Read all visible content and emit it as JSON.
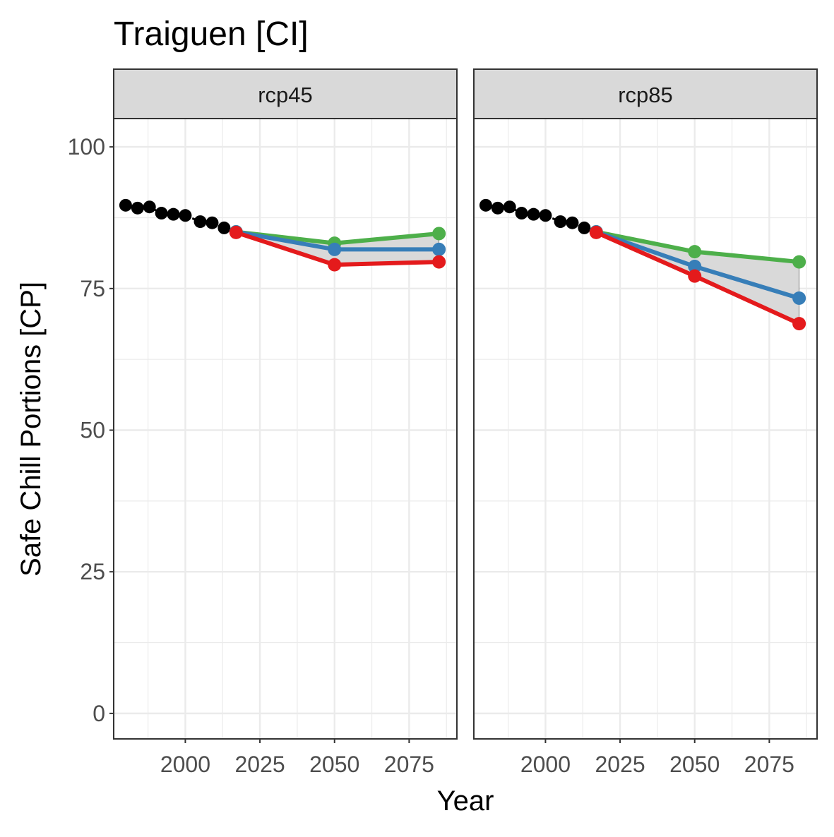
{
  "chart_data": {
    "type": "line",
    "title": "Traiguen [CI]",
    "xlabel": "Year",
    "ylabel": "Safe Chill Portions [CP]",
    "xlim": [
      1976,
      2091
    ],
    "ylim": [
      -4.5,
      105
    ],
    "x_ticks": [
      2000,
      2025,
      2050,
      2075
    ],
    "x_tick_labels": [
      "2000",
      "2025",
      "2050",
      "2075"
    ],
    "y_ticks": [
      0,
      25,
      50,
      75,
      100
    ],
    "y_tick_labels": [
      "0",
      "25",
      "50",
      "75",
      "100"
    ],
    "grid": true,
    "colors": {
      "historic": "#000000",
      "green": "#4daf4a",
      "blue": "#377eb8",
      "red": "#e41a1c",
      "ribbon": "#d9d9d9",
      "strip": "#d9d9d9",
      "gridline": "#ebebeb",
      "border": "#333333"
    },
    "panels": [
      {
        "strip_label": "rcp45",
        "historic": {
          "x": [
            1980,
            1984,
            1988,
            1992,
            1996,
            2000,
            2005,
            2009,
            2013
          ],
          "y": [
            89.7,
            89.2,
            89.4,
            88.3,
            88.1,
            87.9,
            86.8,
            86.6,
            85.7
          ]
        },
        "ribbon": {
          "x": [
            2017,
            2050,
            2085
          ],
          "ymin": [
            84.9,
            79.2,
            79.7
          ],
          "ymax": [
            85.0,
            83.0,
            84.7
          ]
        },
        "series": [
          {
            "color": "green",
            "x": [
              2017,
              2050,
              2085
            ],
            "y": [
              85.0,
              83.0,
              84.7
            ]
          },
          {
            "color": "blue",
            "x": [
              2017,
              2050,
              2085
            ],
            "y": [
              85.0,
              81.9,
              81.9
            ]
          },
          {
            "color": "red",
            "x": [
              2017,
              2050,
              2085
            ],
            "y": [
              84.9,
              79.2,
              79.7
            ]
          }
        ]
      },
      {
        "strip_label": "rcp85",
        "historic": {
          "x": [
            1980,
            1984,
            1988,
            1992,
            1996,
            2000,
            2005,
            2009,
            2013
          ],
          "y": [
            89.7,
            89.2,
            89.4,
            88.3,
            88.1,
            87.9,
            86.8,
            86.6,
            85.7
          ]
        },
        "ribbon": {
          "x": [
            2017,
            2050,
            2085
          ],
          "ymin": [
            84.9,
            77.2,
            68.8
          ],
          "ymax": [
            85.0,
            81.5,
            79.7
          ]
        },
        "series": [
          {
            "color": "green",
            "x": [
              2017,
              2050,
              2085
            ],
            "y": [
              85.0,
              81.5,
              79.7
            ]
          },
          {
            "color": "blue",
            "x": [
              2017,
              2050,
              2085
            ],
            "y": [
              85.0,
              78.9,
              73.3
            ]
          },
          {
            "color": "red",
            "x": [
              2017,
              2050,
              2085
            ],
            "y": [
              84.9,
              77.2,
              68.8
            ]
          }
        ]
      }
    ]
  }
}
